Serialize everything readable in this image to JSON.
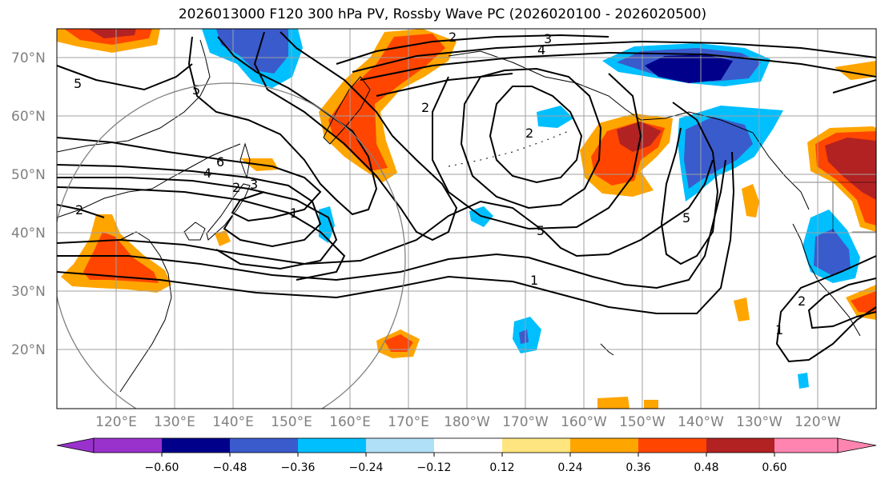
{
  "title": "2026013000 F120 300 hPa PV, Rossby Wave PC (2026020100 - 2026020500)",
  "colors": {
    "neg_extreme": "#9932cc",
    "neg_060": "#00008b",
    "neg_048": "#3a5bcc",
    "neg_036": "#00bfff",
    "neg_024": "#b0e0f8",
    "neutral": "#ffffff",
    "pos_012": "#ffe57f",
    "pos_024": "#ffa500",
    "pos_036": "#ff4500",
    "pos_048": "#b22222",
    "pos_extreme": "#ff85b0",
    "contour": "#000000",
    "grid": "#a0a0a0",
    "circle": "#808080"
  },
  "axes": {
    "lon_labels": [
      "120°E",
      "130°E",
      "140°E",
      "150°E",
      "160°E",
      "170°E",
      "180°W",
      "170°W",
      "160°W",
      "150°W",
      "140°W",
      "130°W",
      "120°W"
    ],
    "lat_labels": [
      "70°N",
      "60°N",
      "50°N",
      "40°N",
      "30°N",
      "20°N"
    ]
  },
  "colorbar": {
    "ticks": [
      "−0.60",
      "−0.48",
      "−0.36",
      "−0.24",
      "−0.12",
      "0.12",
      "0.24",
      "0.36",
      "0.48",
      "0.60"
    ]
  },
  "contour_labels": [
    "2",
    "3",
    "4",
    "5",
    "5",
    "2",
    "6",
    "4",
    "2",
    "3",
    "2",
    "1",
    "5",
    "1",
    "2",
    "5",
    "2",
    "1"
  ]
}
